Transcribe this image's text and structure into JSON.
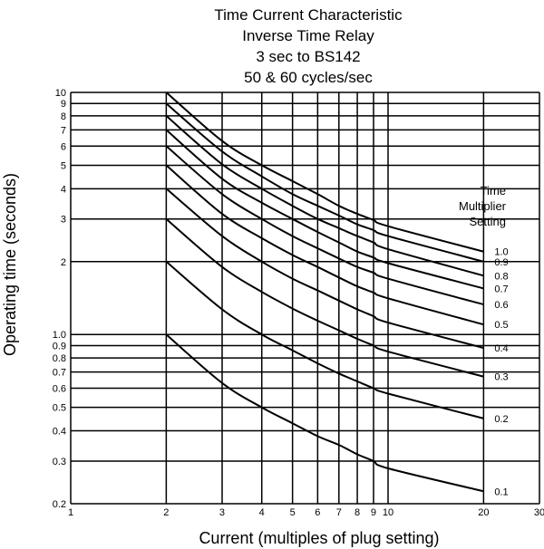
{
  "chart_data": {
    "type": "line",
    "title_lines": [
      "Time Current Characteristic",
      "Inverse Time Relay",
      "3 sec to BS142",
      "50 & 60 cycles/sec"
    ],
    "xlabel": "Current (multiples of plug setting)",
    "ylabel": "Operating time (seconds)",
    "x_scale": "log",
    "y_scale": "log",
    "xlim": [
      1,
      30
    ],
    "ylim": [
      0.2,
      10
    ],
    "grid": true,
    "x_ticks": [
      {
        "value": 1,
        "label": "1"
      },
      {
        "value": 2,
        "label": "2"
      },
      {
        "value": 3,
        "label": "3"
      },
      {
        "value": 4,
        "label": "4"
      },
      {
        "value": 5,
        "label": "5"
      },
      {
        "value": 6,
        "label": "6"
      },
      {
        "value": 7,
        "label": "7"
      },
      {
        "value": 8,
        "label": "8"
      },
      {
        "value": 9,
        "label": "9"
      },
      {
        "value": 10,
        "label": "10"
      },
      {
        "value": 20,
        "label": "20"
      },
      {
        "value": 30,
        "label": "30"
      }
    ],
    "y_ticks": [
      {
        "value": 0.2,
        "label": "0.2"
      },
      {
        "value": 0.3,
        "label": "0.3"
      },
      {
        "value": 0.4,
        "label": "0.4"
      },
      {
        "value": 0.5,
        "label": "0.5"
      },
      {
        "value": 0.6,
        "label": "0.6"
      },
      {
        "value": 0.7,
        "label": "0.7"
      },
      {
        "value": 0.8,
        "label": "0.8"
      },
      {
        "value": 0.9,
        "label": "0.9"
      },
      {
        "value": 1.0,
        "label": "1.0"
      },
      {
        "value": 2,
        "label": "2"
      },
      {
        "value": 3,
        "label": "3"
      },
      {
        "value": 4,
        "label": "4"
      },
      {
        "value": 5,
        "label": "5"
      },
      {
        "value": 6,
        "label": "6"
      },
      {
        "value": 7,
        "label": "7"
      },
      {
        "value": 8,
        "label": "8"
      },
      {
        "value": 9,
        "label": "9"
      },
      {
        "value": 10,
        "label": "10"
      }
    ],
    "legend_title": [
      "Time",
      "Multiplier",
      "Setting"
    ],
    "legend_position": "right",
    "series": [
      {
        "name": "1.0",
        "x": [
          2,
          3,
          4,
          5,
          6,
          7,
          8,
          9,
          10,
          20
        ],
        "y": [
          10,
          6.3,
          5.0,
          4.3,
          3.8,
          3.4,
          3.15,
          2.97,
          2.8,
          2.2
        ]
      },
      {
        "name": "0.9",
        "x": [
          2,
          3,
          4,
          5,
          6,
          7,
          8,
          9,
          10,
          20
        ],
        "y": [
          9,
          5.7,
          4.5,
          3.8,
          3.4,
          3.1,
          2.85,
          2.7,
          2.55,
          2.0
        ]
      },
      {
        "name": "0.8",
        "x": [
          2,
          3,
          4,
          5,
          6,
          7,
          8,
          9,
          10,
          20
        ],
        "y": [
          8,
          5.05,
          4.0,
          3.4,
          3.0,
          2.75,
          2.55,
          2.4,
          2.25,
          1.75
        ]
      },
      {
        "name": "0.7",
        "x": [
          2,
          3,
          4,
          5,
          6,
          7,
          8,
          9,
          10,
          20
        ],
        "y": [
          7,
          4.4,
          3.5,
          3.0,
          2.65,
          2.4,
          2.2,
          2.08,
          1.97,
          1.55
        ]
      },
      {
        "name": "0.6",
        "x": [
          2,
          3,
          4,
          5,
          6,
          7,
          8,
          9,
          10,
          20
        ],
        "y": [
          6,
          3.8,
          3.0,
          2.55,
          2.27,
          2.06,
          1.9,
          1.8,
          1.7,
          1.33
        ]
      },
      {
        "name": "0.5",
        "x": [
          2,
          3,
          4,
          5,
          6,
          7,
          8,
          9,
          10,
          20
        ],
        "y": [
          5,
          3.15,
          2.5,
          2.13,
          1.9,
          1.72,
          1.58,
          1.49,
          1.41,
          1.1
        ]
      },
      {
        "name": "0.4",
        "x": [
          2,
          3,
          4,
          5,
          6,
          7,
          8,
          9,
          10,
          20
        ],
        "y": [
          4,
          2.55,
          2.0,
          1.7,
          1.52,
          1.38,
          1.27,
          1.19,
          1.12,
          0.88
        ]
      },
      {
        "name": "0.3",
        "x": [
          2,
          3,
          4,
          5,
          6,
          7,
          8,
          9,
          10,
          20
        ],
        "y": [
          3,
          1.9,
          1.5,
          1.28,
          1.14,
          1.04,
          0.96,
          0.9,
          0.85,
          0.67
        ]
      },
      {
        "name": "0.2",
        "x": [
          2,
          3,
          4,
          5,
          6,
          7,
          8,
          9,
          10,
          20
        ],
        "y": [
          2,
          1.27,
          1.0,
          0.86,
          0.76,
          0.69,
          0.64,
          0.6,
          0.57,
          0.45
        ]
      },
      {
        "name": "0.1",
        "x": [
          2,
          3,
          4,
          5,
          6,
          7,
          8,
          9,
          10,
          20
        ],
        "y": [
          1.0,
          0.63,
          0.5,
          0.43,
          0.38,
          0.35,
          0.32,
          0.3,
          0.28,
          0.225
        ]
      }
    ]
  }
}
